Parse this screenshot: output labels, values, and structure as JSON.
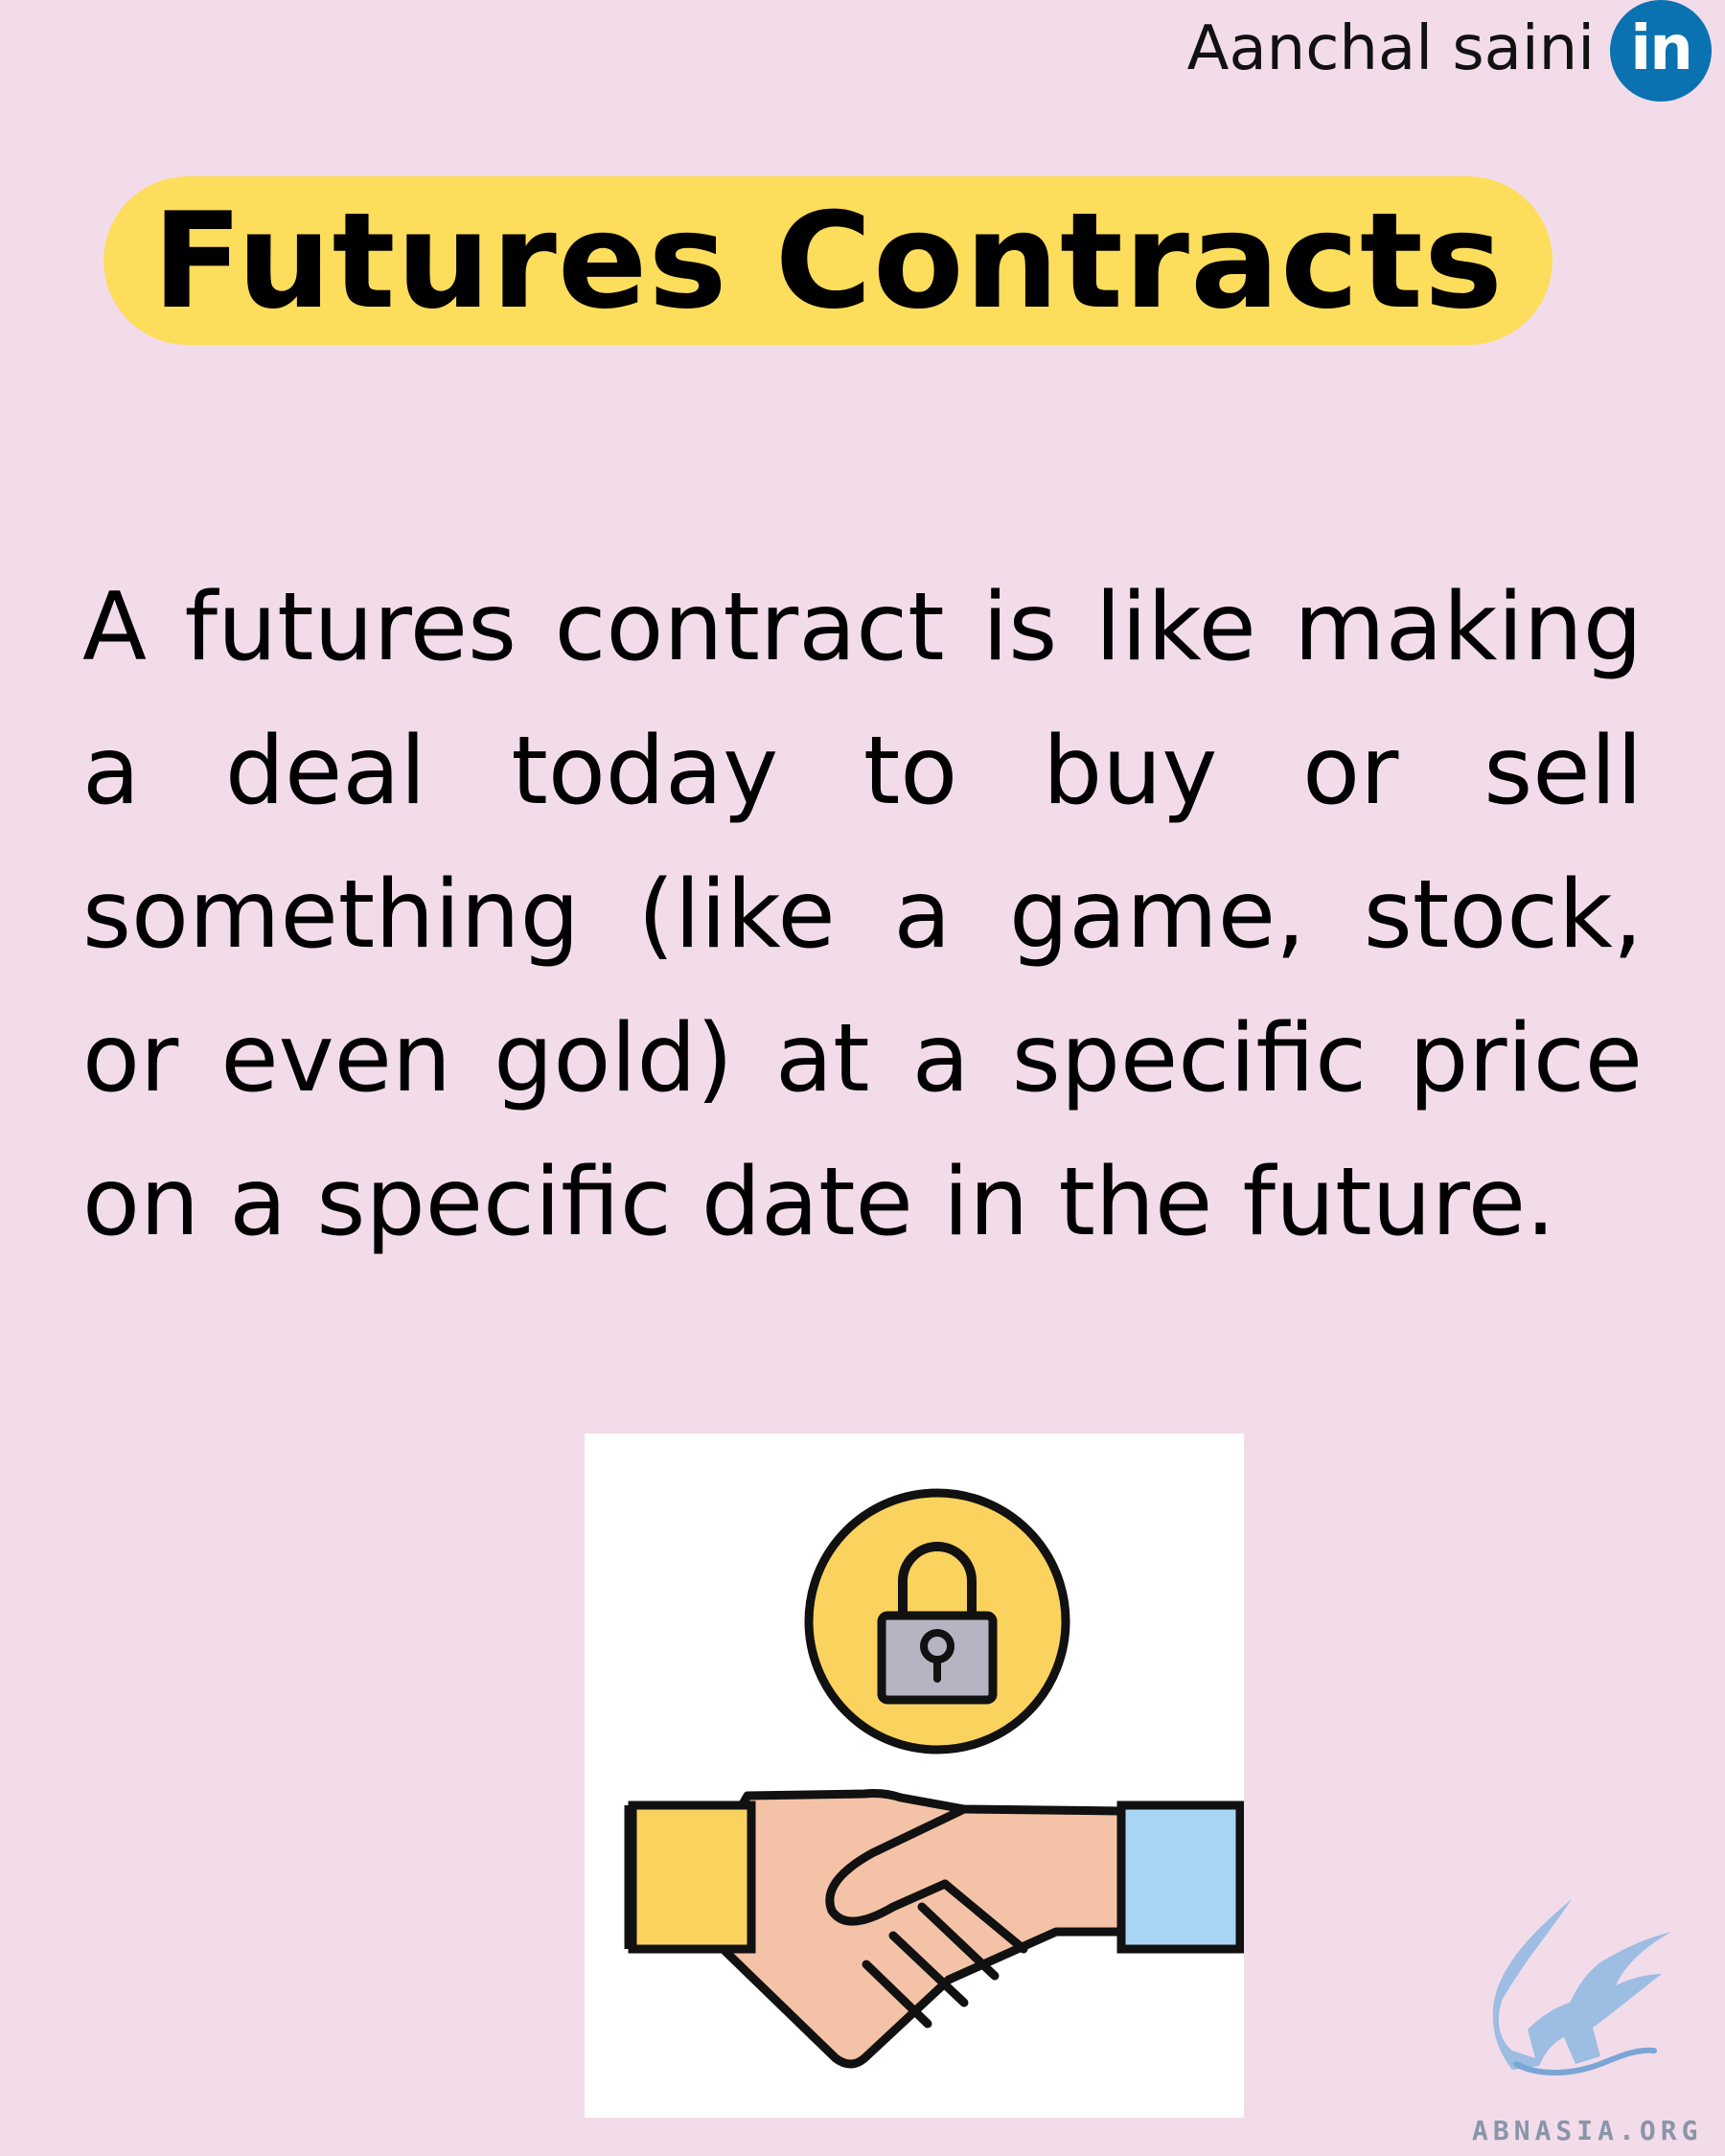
{
  "header": {
    "author_name": "Aanchal saini",
    "linkedin_badge_text": "in",
    "linkedin_icon": "linkedin-icon"
  },
  "title": "Futures Contracts",
  "body": "A futures contract is like making a deal today to buy or sell something (like a game, stock, or even gold) at a specific price on a specific date in the future.",
  "illustration": {
    "icons": [
      "lock-icon",
      "handshake-icon"
    ],
    "colors": {
      "lock_circle": "#fad35e",
      "lock_body": "#b6b4c2",
      "left_cuff": "#fad35e",
      "right_cuff": "#a9d5f5",
      "skin": "#f4c3a7",
      "outline": "#111111"
    }
  },
  "watermark": {
    "text": "ABNASIA.ORG",
    "icon": "griffin-logo-icon"
  },
  "colors": {
    "background": "#f3dcea",
    "title_pill": "#fddd5c",
    "linkedin_blue": "#0a72b0"
  }
}
